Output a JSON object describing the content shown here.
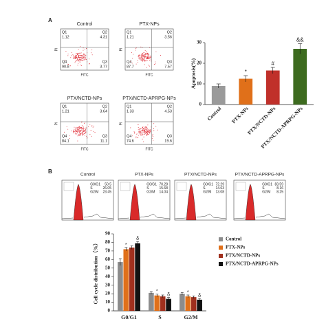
{
  "panel_a": {
    "letter": "A",
    "x_label": "FITC",
    "y_label": "PI",
    "plots": [
      {
        "title": "Control",
        "quadrants": [
          {
            "name": "Q1",
            "value": 1.12
          },
          {
            "name": "Q2",
            "value": 4.31
          },
          {
            "name": "Q3",
            "value": 3.77
          },
          {
            "name": "Q4",
            "value": 90.8
          }
        ]
      },
      {
        "title": "PTX-NPs",
        "quadrants": [
          {
            "name": "Q1",
            "value": 1.21
          },
          {
            "name": "Q2",
            "value": 3.56
          },
          {
            "name": "Q3",
            "value": 7.57
          },
          {
            "name": "Q4",
            "value": 87.7
          }
        ]
      },
      {
        "title": "PTX/NCTD-NPs",
        "quadrants": [
          {
            "name": "Q1",
            "value": 1.21
          },
          {
            "name": "Q2",
            "value": 3.64
          },
          {
            "name": "Q3",
            "value": 11.1
          },
          {
            "name": "Q4",
            "value": 84.1
          }
        ]
      },
      {
        "title": "PTX/NCTD-APRPG-NPs",
        "quadrants": [
          {
            "name": "Q1",
            "value": 1.33
          },
          {
            "name": "Q2",
            "value": 4.53
          },
          {
            "name": "Q3",
            "value": 19.6
          },
          {
            "name": "Q4",
            "value": 74.6
          }
        ]
      }
    ]
  },
  "panel_b": {
    "letter": "B",
    "histograms": [
      {
        "title": "Control",
        "stats": [
          {
            "label": "G0/G1",
            "value": 50.5
          },
          {
            "label": "S",
            "value": 26.05
          },
          {
            "label": "G2/M",
            "value": 23.45
          }
        ]
      },
      {
        "title": "PTX-NPs",
        "stats": [
          {
            "label": "G0/G1",
            "value": 70.28
          },
          {
            "label": "S",
            "value": 15.68
          },
          {
            "label": "G2/M",
            "value": 14.04
          }
        ]
      },
      {
        "title": "PTX/NCTD-NPs",
        "stats": [
          {
            "label": "G0/G1",
            "value": 72.29
          },
          {
            "label": "S",
            "value": 14.63
          },
          {
            "label": "G2/M",
            "value": 13.08
          }
        ]
      },
      {
        "title": "PTX/NCTD-APRPG-NPs",
        "stats": [
          {
            "label": "G0/G1",
            "value": 83.59
          },
          {
            "label": "S",
            "value": 8.16
          },
          {
            "label": "G2/M",
            "value": 8.25
          }
        ]
      }
    ]
  },
  "chart_data": [
    {
      "type": "bar",
      "y_label": "Apoptosis(%)",
      "categories": [
        "Control",
        "PTX-NPs",
        "PTX/NCTD-NPs",
        "PTX/NCTD-APRPG-NPs"
      ],
      "values": [
        9,
        12.5,
        16.5,
        27
      ],
      "errors": [
        1,
        1.5,
        1.5,
        2.5
      ],
      "colors": [
        "#9a9a9a",
        "#e0701a",
        "#c0302a",
        "#3d6b1f"
      ],
      "bar_labels": [
        null,
        "*",
        "#",
        "&&"
      ],
      "ylim": [
        0,
        30
      ],
      "yticks": [
        0,
        10,
        20,
        30
      ]
    },
    {
      "type": "grouped_bar",
      "y_label": "Cell cycle distribution（%）",
      "categories": [
        "G0/G1",
        "S",
        "G2/M"
      ],
      "series": [
        {
          "name": "Control",
          "color": "#8c8c8c",
          "values": [
            57,
            21,
            20
          ],
          "errors": [
            4,
            1.5,
            1.5
          ],
          "bar_labels": [
            null,
            null,
            null
          ]
        },
        {
          "name": "PTX-NPs",
          "color": "#e0701a",
          "values": [
            72,
            18,
            17
          ],
          "errors": [
            2,
            1.5,
            1.5
          ],
          "bar_labels": [
            "*",
            "*",
            "*"
          ]
        },
        {
          "name": "PTX/NCTD-NPs",
          "color": "#a0301e",
          "values": [
            74,
            17,
            16
          ],
          "errors": [
            2,
            1.5,
            1.5
          ],
          "bar_labels": [
            null,
            null,
            null
          ]
        },
        {
          "name": "PTX/NCTD-APRPG-NPs",
          "color": "#111111",
          "values": [
            79,
            14,
            13
          ],
          "errors": [
            2,
            1.5,
            1.5
          ],
          "bar_labels": [
            "δ",
            "δ",
            "δ"
          ]
        }
      ],
      "ylim": [
        0,
        90
      ],
      "yticks": [
        0,
        10,
        20,
        30,
        40,
        50,
        60,
        70,
        80,
        90
      ]
    }
  ]
}
